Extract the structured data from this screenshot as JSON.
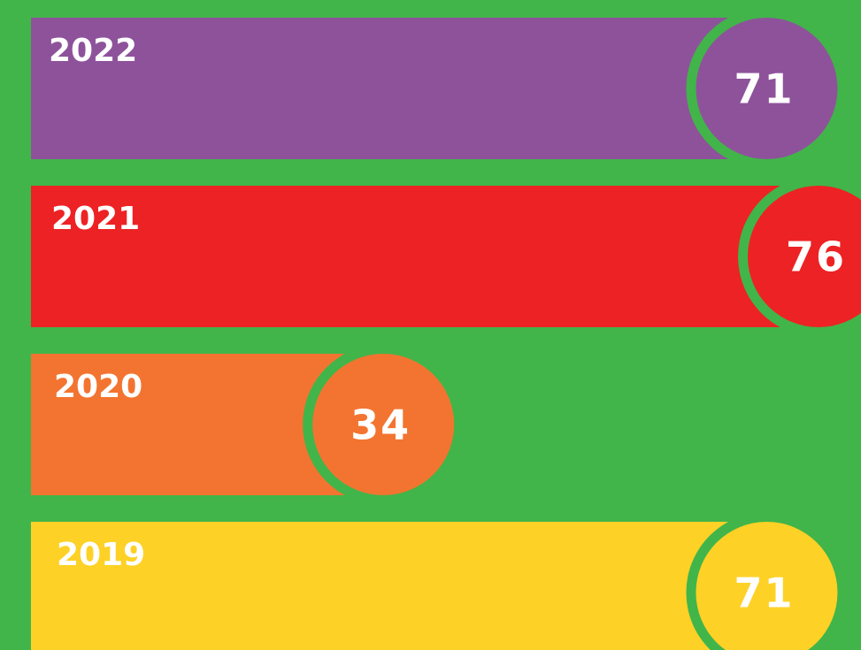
{
  "chart_data": {
    "type": "bar",
    "orientation": "horizontal",
    "categories": [
      "2022",
      "2021",
      "2020",
      "2019"
    ],
    "values": [
      71,
      76,
      34,
      71
    ],
    "colors": [
      "#8e529b",
      "#ed2224",
      "#f37430",
      "#fed126"
    ],
    "background": "#41b549"
  }
}
